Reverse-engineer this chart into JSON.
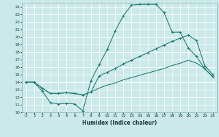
{
  "title": "",
  "xlabel": "Humidex (Indice chaleur)",
  "xlim": [
    -0.5,
    23.5
  ],
  "ylim": [
    10,
    24.5
  ],
  "yticks": [
    10,
    11,
    12,
    13,
    14,
    15,
    16,
    17,
    18,
    19,
    20,
    21,
    22,
    23,
    24
  ],
  "xticks": [
    0,
    1,
    2,
    3,
    4,
    5,
    6,
    7,
    8,
    9,
    10,
    11,
    12,
    13,
    14,
    15,
    16,
    17,
    18,
    19,
    20,
    21,
    22,
    23
  ],
  "bg_color": "#cce9e9",
  "grid_color": "#ffffff",
  "line_color": "#1e7b6e",
  "curve1_x": [
    0,
    1,
    2,
    3,
    4,
    5,
    6,
    7,
    8,
    9,
    10,
    11,
    12,
    13,
    14,
    15,
    16,
    17,
    18,
    19,
    20,
    21,
    22,
    23
  ],
  "curve1_y": [
    14.0,
    14.0,
    12.8,
    11.3,
    11.1,
    11.2,
    11.1,
    10.2,
    14.2,
    16.3,
    18.3,
    20.8,
    22.8,
    24.2,
    24.3,
    24.3,
    24.3,
    23.2,
    20.6,
    20.6,
    18.5,
    17.4,
    15.8,
    14.7
  ],
  "curve2_x": [
    0,
    1,
    2,
    3,
    4,
    5,
    6,
    7,
    8,
    9,
    10,
    11,
    12,
    13,
    14,
    15,
    16,
    17,
    18,
    19,
    20,
    21,
    22,
    23
  ],
  "curve2_y": [
    14.0,
    14.0,
    13.2,
    12.5,
    12.5,
    12.6,
    12.5,
    12.3,
    12.7,
    14.8,
    15.3,
    15.8,
    16.4,
    16.9,
    17.4,
    17.9,
    18.4,
    18.9,
    19.4,
    19.8,
    20.2,
    19.5,
    16.2,
    15.0
  ],
  "curve3_x": [
    0,
    1,
    2,
    3,
    4,
    5,
    6,
    7,
    8,
    9,
    10,
    11,
    12,
    13,
    14,
    15,
    16,
    17,
    18,
    19,
    20,
    21,
    22,
    23
  ],
  "curve3_y": [
    14.0,
    14.0,
    13.2,
    12.5,
    12.5,
    12.6,
    12.5,
    12.3,
    12.7,
    13.2,
    13.6,
    13.9,
    14.3,
    14.6,
    14.9,
    15.2,
    15.5,
    15.8,
    16.2,
    16.5,
    16.9,
    16.5,
    15.8,
    14.7
  ]
}
